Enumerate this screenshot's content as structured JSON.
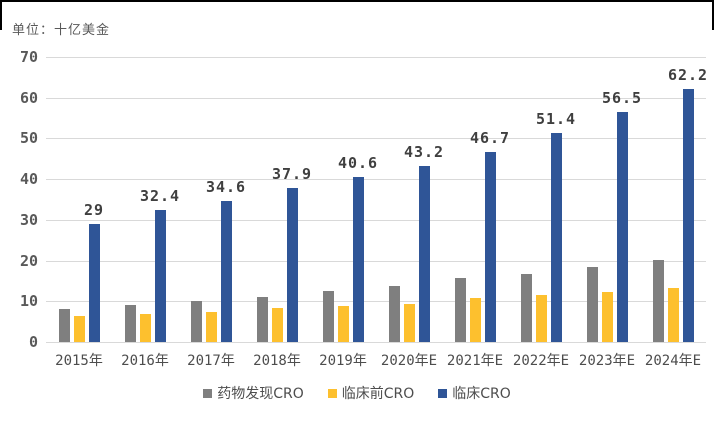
{
  "unit": "单位：十亿美金",
  "colors": {
    "drug_discovery": "#7f7f7f",
    "preclinical": "#fdc02e",
    "clinical": "#2f5597",
    "gridline": "#d9d9d9",
    "axis_text": "#595959",
    "label_text": "#3f3f3f",
    "border": "#000000"
  },
  "chart_data": {
    "type": "bar",
    "title": "",
    "unit_label": "单位：十亿美金",
    "categories": [
      "2015年",
      "2016年",
      "2017年",
      "2018年",
      "2019年",
      "2020年E",
      "2021年E",
      "2022年E",
      "2023年E",
      "2024年E"
    ],
    "series": [
      {
        "key": "drug-discovery-cro",
        "name": "药物发现CRO",
        "color": "#7f7f7f",
        "labeled": false,
        "values": [
          8.2,
          9.2,
          10.0,
          11.1,
          12.6,
          13.8,
          15.7,
          16.8,
          18.5,
          20.2
        ]
      },
      {
        "key": "preclinical-cro",
        "name": "临床前CRO",
        "color": "#fdc02e",
        "labeled": false,
        "values": [
          6.4,
          6.8,
          7.4,
          8.3,
          8.8,
          9.4,
          10.7,
          11.6,
          12.3,
          13.3
        ]
      },
      {
        "key": "clinical-cro",
        "name": "临床CRO",
        "color": "#2f5597",
        "labeled": true,
        "values": [
          29,
          32.4,
          34.6,
          37.9,
          40.6,
          43.2,
          46.7,
          51.4,
          56.5,
          62.2
        ],
        "labels": [
          "29",
          "32.4",
          "34.6",
          "37.9",
          "40.6",
          "43.2",
          "46.7",
          "51.4",
          "56.5",
          "62.2"
        ]
      }
    ],
    "y_axis": {
      "min": 0,
      "max": 70,
      "step": 10,
      "ticks": [
        "0",
        "10",
        "20",
        "30",
        "40",
        "50",
        "60",
        "70"
      ]
    },
    "grid": true,
    "legend_position": "bottom"
  }
}
